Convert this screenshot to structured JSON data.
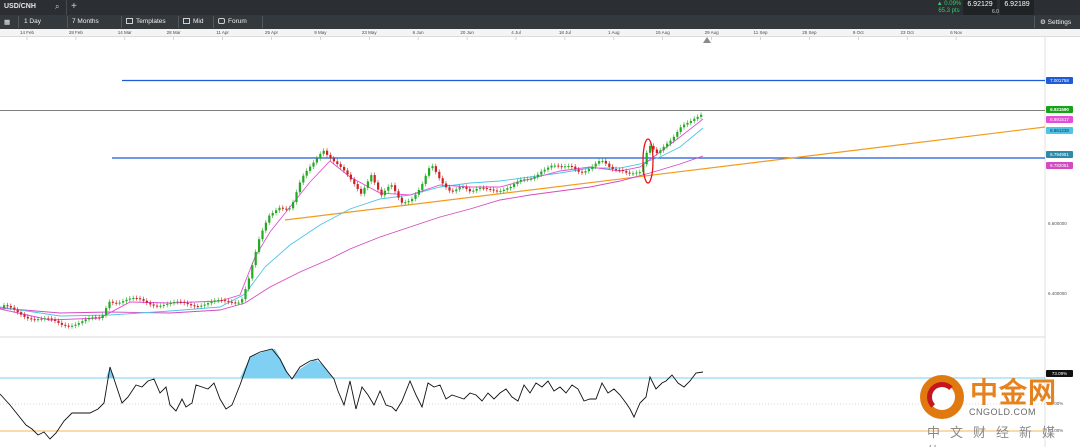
{
  "topbar": {
    "symbol": "USD/CNH",
    "search_icon": "search-icon",
    "add_icon": "plus-icon",
    "change_pct": "▲ 0.09%",
    "change_pts": "65.3 pts",
    "bid": "6.92129",
    "ask": "6.92189",
    "spread": "6.0",
    "up_color": "#33cc66"
  },
  "toolbar": {
    "interval": "1 Day",
    "range": "7 Months",
    "templates": "Templates",
    "mid": "Mid",
    "forum": "Forum",
    "settings": "Settings",
    "layout_icon": "grid-icon",
    "settings_icon": "gear-icon"
  },
  "date_axis": [
    "14 Feb",
    "28 Feb",
    "14 Mar",
    "28 Mar",
    "11 Apr",
    "25 Apr",
    "9 May",
    "23 May",
    "6 Jun",
    "20 Jun",
    "4 Jul",
    "18 Jul",
    "1 Aug",
    "15 Aug",
    "29 Aug",
    "11 Sep",
    "25 Sep",
    "9 Oct",
    "23 Oct",
    "6 Nov"
  ],
  "price_labels": {
    "top_line": "7.001758",
    "current": "6.921590",
    "ma_fast": "6.891517",
    "ma_mid": "6.861238",
    "support": "6.794951",
    "ma_slow": "6.782051",
    "tick_1": "6.600000",
    "tick_2": "6.400000"
  },
  "indicator_labels": {
    "current": "73.09%",
    "level_80": "80.00%",
    "level_20": "20.00%"
  },
  "watermark": {
    "title": "中金网",
    "url": "CNGOLD.COM",
    "subtitle": "中文财经新媒体",
    "logo_icon": "cngold-logo-icon"
  },
  "colors": {
    "horizontal_lines": "#1e5bd6",
    "trendline": "#f29b1d",
    "bull": "#22aa22",
    "bear": "#cc2222",
    "ma_fast": "#e34fd6",
    "ma_mid": "#4fc3e8",
    "ma_slow": "#d44ac0",
    "current_label": "#17a317",
    "highlight": "#e8121b"
  }
}
